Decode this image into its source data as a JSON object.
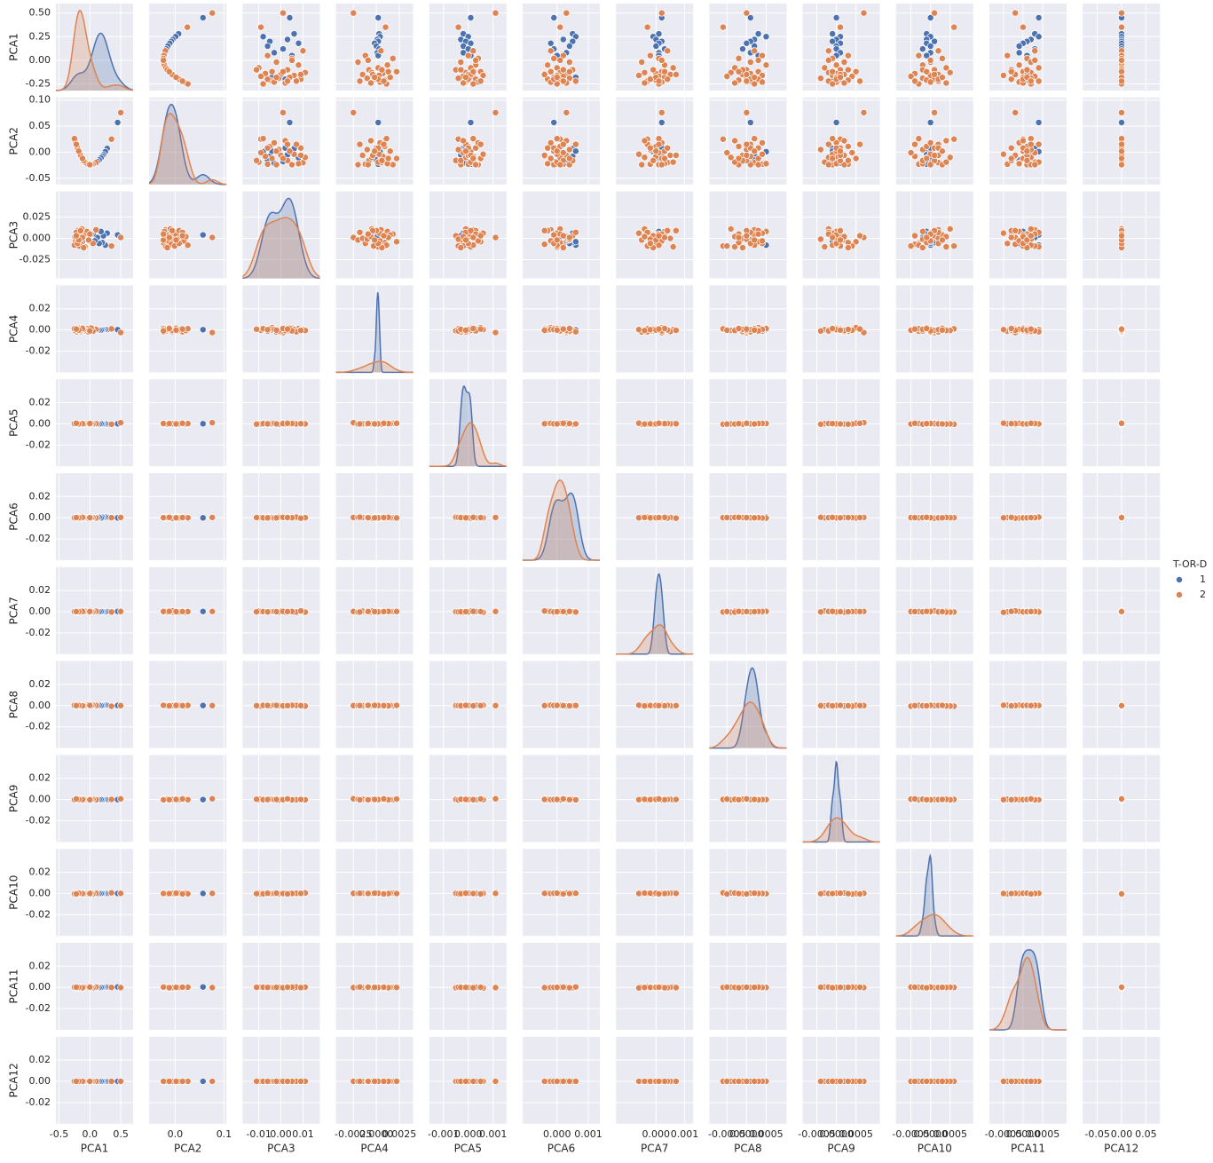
{
  "chart_data": {
    "type": "pairplot",
    "legend_title": "T-OR-D",
    "legend_position": "right",
    "axes": [
      {
        "name": "PCA1",
        "xlim": [
          -0.55,
          0.7
        ],
        "ylim": [
          -0.32,
          0.6
        ],
        "xticks": [
          -0.5,
          {
            "value": 0,
            "label": "0.0"
          },
          0.5
        ],
        "yticks": [
          -0.25,
          {
            "value": 0,
            "label": "0.00"
          },
          0.25,
          {
            "value": 0.5,
            "label": "0.50"
          }
        ]
      },
      {
        "name": "PCA2",
        "xlim": [
          -0.053,
          0.105
        ],
        "ylim": [
          -0.062,
          0.105
        ],
        "xticks": [
          {
            "value": 0,
            "label": "0.0"
          },
          0.1
        ],
        "yticks": [
          -0.05,
          {
            "value": 0,
            "label": "0.00"
          },
          0.05,
          {
            "value": 0.1,
            "label": "0.10"
          }
        ]
      },
      {
        "name": "PCA3",
        "xlim": [
          -0.0173,
          0.0176
        ],
        "ylim": [
          -0.047,
          0.055
        ],
        "xticks": [
          -0.01,
          {
            "value": 0,
            "label": "0.00"
          },
          0.01
        ],
        "yticks": [
          -0.025,
          {
            "value": 0,
            "label": "0.000"
          },
          0.025
        ]
      },
      {
        "name": "PCA4",
        "xlim": [
          -0.0044,
          0.004
        ],
        "ylim": [
          -0.04,
          0.042
        ],
        "xticks": [
          -0.0025,
          {
            "value": 0,
            "label": "0.0000"
          },
          0.0025
        ],
        "yticks": [
          -0.02,
          {
            "value": 0,
            "label": "0.00"
          },
          0.02
        ]
      },
      {
        "name": "PCA5",
        "xlim": [
          -0.00157,
          0.00154
        ],
        "ylim": [
          -0.04,
          0.042
        ],
        "xticks": [
          -0.001,
          {
            "value": 0,
            "label": "0.000"
          },
          0.001
        ],
        "yticks": [
          -0.02,
          {
            "value": 0,
            "label": "0.00"
          },
          0.02
        ]
      },
      {
        "name": "PCA6",
        "xlim": [
          -0.0011,
          0.00137
        ],
        "ylim": [
          -0.04,
          0.042
        ],
        "xticks": [
          {
            "value": 0,
            "label": "0.000"
          },
          0.001
        ],
        "yticks": [
          -0.02,
          {
            "value": 0,
            "label": "0.00"
          },
          0.02
        ]
      },
      {
        "name": "PCA7",
        "xlim": [
          -0.0014,
          0.0013
        ],
        "ylim": [
          -0.04,
          0.042
        ],
        "xticks": [
          {
            "value": 0,
            "label": "0.000"
          },
          0.001
        ],
        "yticks": [
          -0.02,
          {
            "value": 0,
            "label": "0.00"
          },
          0.02
        ]
      },
      {
        "name": "PCA8",
        "xlim": [
          -0.00095,
          0.00102
        ],
        "ylim": [
          -0.04,
          0.042
        ],
        "xticks": [
          -0.0005,
          {
            "value": 0,
            "label": "0.0000"
          },
          0.0005
        ],
        "yticks": [
          -0.02,
          {
            "value": 0,
            "label": "0.00"
          },
          0.02
        ]
      },
      {
        "name": "PCA9",
        "xlim": [
          -0.00086,
          0.00111
        ],
        "ylim": [
          -0.04,
          0.042
        ],
        "xticks": [
          -0.0005,
          {
            "value": 0,
            "label": "0.0000"
          },
          0.0005
        ],
        "yticks": [
          -0.02,
          {
            "value": 0,
            "label": "0.00"
          },
          0.02
        ]
      },
      {
        "name": "PCA10",
        "xlim": [
          -0.00088,
          0.00109
        ],
        "ylim": [
          -0.04,
          0.042
        ],
        "xticks": [
          -0.0005,
          {
            "value": 0,
            "label": "0.0000"
          },
          0.0005
        ],
        "yticks": [
          -0.02,
          {
            "value": 0,
            "label": "0.00"
          },
          0.02
        ]
      },
      {
        "name": "PCA11",
        "xlim": [
          -0.00086,
          0.00111
        ],
        "ylim": [
          -0.04,
          0.042
        ],
        "xticks": [
          -0.0005,
          {
            "value": 0,
            "label": "0.0000"
          },
          0.0005
        ],
        "yticks": [
          -0.02,
          {
            "value": 0,
            "label": "0.00"
          },
          0.02
        ]
      },
      {
        "name": "PCA12",
        "xlim": [
          -0.08,
          0.079
        ],
        "ylim": [
          -0.04,
          0.042
        ],
        "xticks": [
          -0.05,
          {
            "value": 0,
            "label": "0.00"
          },
          0.05
        ],
        "yticks": [
          -0.02,
          {
            "value": 0,
            "label": "0.00"
          },
          0.02
        ]
      }
    ],
    "series": [
      {
        "name": "1",
        "color": "#4c72b0",
        "values": [
          [
            0.45,
            0.057,
            0.004,
            0.0002,
            0.0001,
            -0.0001,
            0.0002,
            0.0001,
            0,
            0,
            0.0004,
            0
          ],
          [
            0.28,
            0.007,
            0.006,
            0.0003,
            -0.0002,
            0.0005,
            0.0001,
            0.0003,
            -0.0001,
            -0.0001,
            0.0003,
            0
          ],
          [
            0.25,
            0.001,
            -0.008,
            0.0004,
            0,
            0.0006,
            -0.0001,
            0.0005,
            0.0001,
            0,
            0.0004,
            0
          ],
          [
            0.22,
            -0.005,
            0.003,
            0.0001,
            -0.0003,
            0.0002,
            0,
            0.0002,
            0,
            -0.0001,
            0.0002,
            0
          ],
          [
            0.2,
            -0.008,
            -0.005,
            0.0002,
            -0.0001,
            0.0005,
            0.0002,
            0.0001,
            -0.0001,
            0.0001,
            0.0001,
            0
          ],
          [
            0.18,
            -0.011,
            0.008,
            -0.0002,
            0.0001,
            -0.0002,
            0.0001,
            0,
            0.0001,
            -0.0001,
            0,
            0
          ],
          [
            0.15,
            -0.015,
            -0.006,
            0,
            -0.0002,
            0.0004,
            0,
            0.0002,
            0,
            0,
            -0.0001,
            0
          ],
          [
            0.12,
            -0.018,
            0.001,
            0.0003,
            0,
            -0.0001,
            0.0003,
            -0.0001,
            0,
            -0.0002,
            0.0003,
            0
          ],
          [
            0.08,
            -0.021,
            -0.003,
            0.0001,
            -0.0002,
            0.0003,
            0.0001,
            0.0001,
            0.0001,
            0,
            -0.0001,
            0
          ],
          [
            0.05,
            -0.023,
            0.005,
            0.0002,
            0.0001,
            0,
            0.0001,
            0.0003,
            0,
            -0.0001,
            0.0001,
            0
          ],
          [
            -0.18,
            0.002,
            -0.004,
            0,
            -0.0003,
            0.0006,
            0,
            0.0002,
            -0.0001,
            0,
            0.0002,
            0
          ],
          [
            -0.2,
            0.008,
            0.002,
            0.0001,
            -0.0001,
            0.0001,
            0.0002,
            0,
            0,
            0,
            0,
            0
          ]
        ]
      },
      {
        "name": "2",
        "color": "#dd8452",
        "values": [
          [
            0.5,
            0.076,
            0.001,
            -0.0025,
            0.0011,
            0.0003,
            0.0002,
            0,
            0.0007,
            0.0001,
            -0.0002,
            0
          ],
          [
            0.35,
            0.025,
            -0.009,
            0.001,
            -0.0004,
            0.0001,
            -0.0003,
            -0.0006,
            0.0001,
            0.0006,
            0,
            0
          ],
          [
            0.1,
            -0.02,
            0.01,
            0.0005,
            0.0002,
            -0.0002,
            0.0004,
            0.0002,
            -0.0002,
            0.0002,
            0.0003,
            0
          ],
          [
            0.05,
            -0.023,
            -0.006,
            -0.0012,
            0,
            0.0002,
            -0.0002,
            0.0004,
            0.0003,
            -0.0003,
            -0.0004,
            0
          ],
          [
            0.02,
            -0.024,
            0.005,
            0.0018,
            0.0004,
            -0.0001,
            0.0001,
            -0.0002,
            -0.0001,
            0.0003,
            0.0001,
            0
          ],
          [
            -0.02,
            -0.024,
            -0.002,
            -0.002,
            -0.0003,
            0.0004,
            -0.0005,
            0.0001,
            0.0002,
            0,
            0.0002,
            0
          ],
          [
            -0.05,
            -0.022,
            0.008,
            0.0012,
            0.0003,
            -0.0003,
            0.0003,
            0.0005,
            0,
            -0.0002,
            -0.0001,
            0
          ],
          [
            -0.08,
            -0.019,
            -0.01,
            0.0002,
            0.0001,
            0,
            0.0006,
            -0.0003,
            -0.0003,
            0.0004,
            0.0004,
            0
          ],
          [
            -0.1,
            -0.016,
            0.003,
            -0.0008,
            -0.0005,
            0.0005,
            -0.0001,
            0,
            0.0001,
            0.0001,
            -0.0003,
            0
          ],
          [
            -0.12,
            -0.012,
            -0.004,
            0.0022,
            0.0005,
            -0.0002,
            0.0002,
            0.0003,
            0.0005,
            -0.0001,
            0,
            0
          ],
          [
            -0.13,
            -0.01,
            0.011,
            -0.0005,
            -0.0001,
            0.0001,
            -0.0004,
            -0.0004,
            -0.0002,
            0.0005,
            0.0002,
            0
          ],
          [
            -0.14,
            -0.008,
            -0.007,
            0.0007,
            0.0002,
            -0.0004,
            0,
            0.0001,
            0,
            -0.0004,
            -0.0002,
            0
          ],
          [
            -0.15,
            -0.006,
            0,
            -0.0015,
            0,
            0.0003,
            0.0005,
            -0.0001,
            0.0002,
            0.0002,
            0.0001,
            0
          ],
          [
            -0.16,
            -0.004,
            0.006,
            0.0003,
            0.0006,
            0,
            -0.0006,
            0.0004,
            -0.0001,
            0,
            -0.0005,
            0
          ],
          [
            -0.17,
            -0.001,
            -0.009,
            -0.0003,
            -0.0002,
            0.0002,
            0.0001,
            -0.0005,
            0.0004,
            -0.0005,
            0.0003,
            0
          ],
          [
            -0.18,
            0.002,
            0.004,
            0.0015,
            0.0001,
            -0.0001,
            0.0003,
            0.0002,
            0,
            0.0003,
            0,
            0
          ],
          [
            -0.19,
            0.005,
            -0.001,
            -0.001,
            -0.0004,
            0.0004,
            -0.0002,
            0,
            -0.0004,
            -0.0002,
            0.0002,
            0
          ],
          [
            -0.2,
            0.008,
            0.009,
            0,
            0.0003,
            -0.0003,
            0.0004,
            0.0003,
            0.0001,
            0.0001,
            -0.0003,
            0
          ],
          [
            -0.21,
            0.011,
            -0.005,
            0.0009,
            0,
            0.0001,
            0,
            -0.0002,
            0.0003,
            -0.0001,
            0.0001,
            0
          ],
          [
            -0.22,
            0.015,
            0.007,
            -0.0018,
            -0.0001,
            0.0006,
            -0.0003,
            0.0001,
            -0.0002,
            0.0002,
            0.0004,
            0
          ],
          [
            -0.23,
            0.018,
            -0.003,
            0.0004,
            0.0004,
            -0.0002,
            0.0002,
            0.0004,
            0,
            0,
            -0.0001,
            0
          ],
          [
            -0.24,
            0.022,
            0.002,
            -0.0006,
            -0.0002,
            0.0003,
            -0.0004,
            -0.0003,
            0.0002,
            0.0004,
            0,
            0
          ],
          [
            -0.25,
            0.026,
            -0.008,
            0.0011,
            0.0002,
            0,
            0.0001,
            0.0002,
            -0.0001,
            -0.0003,
            0.0002,
            0
          ],
          [
            -0.15,
            -0.006,
            0.009,
            -0.0004,
            0.0001,
            -0.0004,
            0.0007,
            0,
            0.0001,
            0.0001,
            -0.0002,
            0
          ],
          [
            -0.1,
            -0.016,
            -0.011,
            0.0006,
            -0.0003,
            0.0002,
            -0.0001,
            -0.0001,
            0.0003,
            -0.0002,
            0.0001,
            0
          ],
          [
            0,
            -0.024,
            0.005,
            -0.0009,
            0.0003,
            0.0001,
            0.0002,
            0.0003,
            -0.0002,
            0,
            0.0003,
            0
          ],
          [
            -0.2,
            0.008,
            -0.006,
            0.0002,
            0,
            -0.0001,
            -0.0002,
            0.0001,
            0,
            0.0002,
            0,
            0
          ],
          [
            -0.12,
            -0.012,
            0.001,
            0.0013,
            0.0002,
            0.0004,
            0.0003,
            -0.0002,
            -0.0001,
            -0.0001,
            -0.0003,
            0
          ],
          [
            -0.18,
            0.002,
            -0.002,
            -0.0002,
            -0.0001,
            0,
            0,
            0.0002,
            0.0001,
            0.0003,
            0.0001,
            0
          ],
          [
            -0.22,
            0.015,
            0.003,
            0.0008,
            0.0005,
            0.0002,
            0.0001,
            0,
            0.0006,
            -0.0004,
            0.0002,
            0
          ]
        ]
      }
    ]
  }
}
